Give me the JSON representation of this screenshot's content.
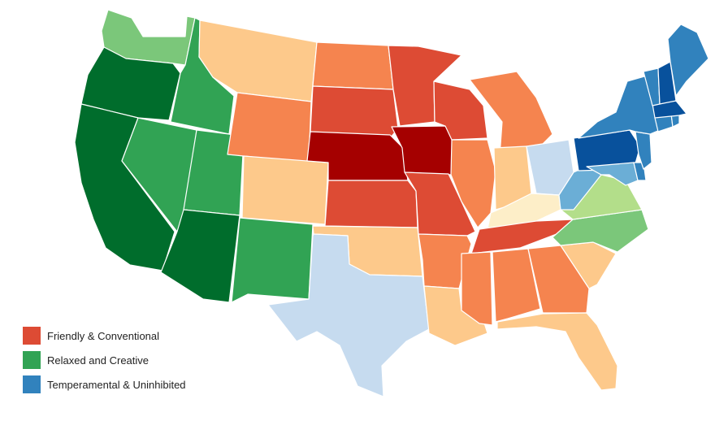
{
  "colors": {
    "fc_dark": "#a50000",
    "fc": "#dd4b34",
    "fc_mid": "#f5844f",
    "fc_light": "#fdc98b",
    "cream": "#fdeec8",
    "rc_pale": "#b3de8a",
    "rc_light": "#7bc77a",
    "rc": "#31a354",
    "rc_dark": "#006d2c",
    "tu_pale": "#c6dbef",
    "tu_light": "#6baed6",
    "tu": "#3182bd",
    "tu_dark": "#08519c"
  },
  "legend": [
    {
      "label": "Friendly & Conventional",
      "color": "#dd4b34"
    },
    {
      "label": "Relaxed and Creative",
      "color": "#31a354"
    },
    {
      "label": "Temperamental & Uninhibited",
      "color": "#3182bd"
    }
  ],
  "states": [
    {
      "id": "WA",
      "name": "Washington",
      "color": "#7bc77a"
    },
    {
      "id": "OR",
      "name": "Oregon",
      "color": "#006d2c"
    },
    {
      "id": "CA",
      "name": "California",
      "color": "#006d2c"
    },
    {
      "id": "ID",
      "name": "Idaho",
      "color": "#31a354"
    },
    {
      "id": "NV",
      "name": "Nevada",
      "color": "#31a354"
    },
    {
      "id": "UT",
      "name": "Utah",
      "color": "#31a354"
    },
    {
      "id": "AZ",
      "name": "Arizona",
      "color": "#006d2c"
    },
    {
      "id": "MT",
      "name": "Montana",
      "color": "#fdc98b"
    },
    {
      "id": "WY",
      "name": "Wyoming",
      "color": "#f5844f"
    },
    {
      "id": "CO",
      "name": "Colorado",
      "color": "#fdc98b"
    },
    {
      "id": "NM",
      "name": "New Mexico",
      "color": "#31a354"
    },
    {
      "id": "ND",
      "name": "North Dakota",
      "color": "#f5844f"
    },
    {
      "id": "SD",
      "name": "South Dakota",
      "color": "#dd4b34"
    },
    {
      "id": "NE",
      "name": "Nebraska",
      "color": "#a50000"
    },
    {
      "id": "KS",
      "name": "Kansas",
      "color": "#dd4b34"
    },
    {
      "id": "OK",
      "name": "Oklahoma",
      "color": "#fdc98b"
    },
    {
      "id": "TX",
      "name": "Texas",
      "color": "#c6dbef"
    },
    {
      "id": "MN",
      "name": "Minnesota",
      "color": "#dd4b34"
    },
    {
      "id": "IA",
      "name": "Iowa",
      "color": "#a50000"
    },
    {
      "id": "MO",
      "name": "Missouri",
      "color": "#dd4b34"
    },
    {
      "id": "AR",
      "name": "Arkansas",
      "color": "#f5844f"
    },
    {
      "id": "LA",
      "name": "Louisiana",
      "color": "#fdc98b"
    },
    {
      "id": "WI",
      "name": "Wisconsin",
      "color": "#dd4b34"
    },
    {
      "id": "MI",
      "name": "Michigan",
      "color": "#f5844f"
    },
    {
      "id": "IL",
      "name": "Illinois",
      "color": "#f5844f"
    },
    {
      "id": "IN",
      "name": "Indiana",
      "color": "#fdc98b"
    },
    {
      "id": "OH",
      "name": "Ohio",
      "color": "#c6dbef"
    },
    {
      "id": "KY",
      "name": "Kentucky",
      "color": "#fdeec8"
    },
    {
      "id": "TN",
      "name": "Tennessee",
      "color": "#dd4b34"
    },
    {
      "id": "MS",
      "name": "Mississippi",
      "color": "#f5844f"
    },
    {
      "id": "AL",
      "name": "Alabama",
      "color": "#f5844f"
    },
    {
      "id": "GA",
      "name": "Georgia",
      "color": "#f5844f"
    },
    {
      "id": "FL",
      "name": "Florida",
      "color": "#fdc98b"
    },
    {
      "id": "SC",
      "name": "South Carolina",
      "color": "#fdc98b"
    },
    {
      "id": "NC",
      "name": "North Carolina",
      "color": "#7bc77a"
    },
    {
      "id": "VA",
      "name": "Virginia",
      "color": "#b3de8a"
    },
    {
      "id": "WV",
      "name": "West Virginia",
      "color": "#6baed6"
    },
    {
      "id": "MD",
      "name": "Maryland",
      "color": "#6baed6"
    },
    {
      "id": "DE",
      "name": "Delaware",
      "color": "#3182bd"
    },
    {
      "id": "PA",
      "name": "Pennsylvania",
      "color": "#08519c"
    },
    {
      "id": "NJ",
      "name": "New Jersey",
      "color": "#3182bd"
    },
    {
      "id": "NY",
      "name": "New York",
      "color": "#3182bd"
    },
    {
      "id": "CT",
      "name": "Connecticut",
      "color": "#3182bd"
    },
    {
      "id": "RI",
      "name": "Rhode Island",
      "color": "#3182bd"
    },
    {
      "id": "MA",
      "name": "Massachusetts",
      "color": "#08519c"
    },
    {
      "id": "VT",
      "name": "Vermont",
      "color": "#3182bd"
    },
    {
      "id": "NH",
      "name": "New Hampshire",
      "color": "#08519c"
    },
    {
      "id": "ME",
      "name": "Maine",
      "color": "#3182bd"
    }
  ]
}
